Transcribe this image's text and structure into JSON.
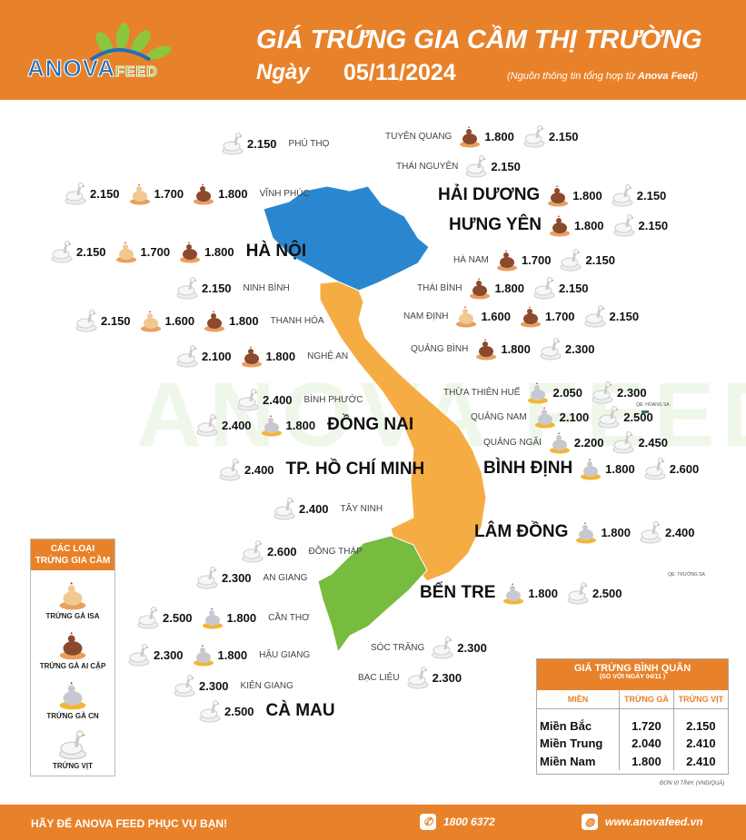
{
  "header": {
    "logo_text": "ANOVA",
    "logo_sub": "FEED",
    "title": "GIÁ TRỨNG GIA CẦM THỊ TRƯỜNG",
    "date_label": "Ngày",
    "date": "05/11/2024",
    "source_prefix": "(Nguồn thông tin tổng hợp từ ",
    "source_brand": "Anova Feed",
    "source_suffix": ")"
  },
  "watermark": "ANOVA FEED",
  "colors": {
    "brand_orange": "#e8822a",
    "north": "#2a87cf",
    "central": "#f5ad43",
    "south": "#77bb3f"
  },
  "icon_types": {
    "isa": "hen-isa-icon",
    "aicap": "hen-ai-cap-icon",
    "cn": "hen-cn-icon",
    "vit": "duck-icon"
  },
  "provinces": [
    {
      "name": "PHÚ THỌ",
      "big": false,
      "side": "left",
      "prices": [
        {
          "type": "vit",
          "value": "2.150"
        }
      ]
    },
    {
      "name": "VĨNH PHÚC",
      "big": false,
      "side": "left",
      "prices": [
        {
          "type": "vit",
          "value": "2.150"
        },
        {
          "type": "isa",
          "value": "1.700"
        },
        {
          "type": "aicap",
          "value": "1.800"
        }
      ]
    },
    {
      "name": "HÀ NỘI",
      "big": true,
      "side": "left",
      "prices": [
        {
          "type": "vit",
          "value": "2.150"
        },
        {
          "type": "isa",
          "value": "1.700"
        },
        {
          "type": "aicap",
          "value": "1.800"
        }
      ]
    },
    {
      "name": "NINH BÌNH",
      "big": false,
      "side": "left",
      "prices": [
        {
          "type": "vit",
          "value": "2.150"
        }
      ]
    },
    {
      "name": "THANH HÓA",
      "big": false,
      "side": "left",
      "prices": [
        {
          "type": "vit",
          "value": "2.150"
        },
        {
          "type": "isa",
          "value": "1.600"
        },
        {
          "type": "aicap",
          "value": "1.800"
        }
      ]
    },
    {
      "name": "NGHỆ AN",
      "big": false,
      "side": "left",
      "prices": [
        {
          "type": "vit",
          "value": "2.100"
        },
        {
          "type": "aicap",
          "value": "1.800"
        }
      ]
    },
    {
      "name": "TUYÊN QUANG",
      "big": false,
      "side": "right",
      "prices": [
        {
          "type": "aicap",
          "value": "1.800"
        },
        {
          "type": "vit",
          "value": "2.150"
        }
      ]
    },
    {
      "name": "THÁI NGUYÊN",
      "big": false,
      "side": "right",
      "prices": [
        {
          "type": "vit",
          "value": "2.150"
        }
      ]
    },
    {
      "name": "HẢI DƯƠNG",
      "big": true,
      "side": "right",
      "prices": [
        {
          "type": "aicap",
          "value": "1.800"
        },
        {
          "type": "vit",
          "value": "2.150"
        }
      ]
    },
    {
      "name": "HƯNG YÊN",
      "big": true,
      "side": "right",
      "prices": [
        {
          "type": "aicap",
          "value": "1.800"
        },
        {
          "type": "vit",
          "value": "2.150"
        }
      ]
    },
    {
      "name": "HÀ NAM",
      "big": false,
      "side": "right",
      "prices": [
        {
          "type": "aicap",
          "value": "1.700"
        },
        {
          "type": "vit",
          "value": "2.150"
        }
      ]
    },
    {
      "name": "THÁI BÌNH",
      "big": false,
      "side": "right",
      "prices": [
        {
          "type": "aicap",
          "value": "1.800"
        },
        {
          "type": "vit",
          "value": "2.150"
        }
      ]
    },
    {
      "name": "NAM ĐỊNH",
      "big": false,
      "side": "right",
      "prices": [
        {
          "type": "isa",
          "value": "1.600"
        },
        {
          "type": "aicap",
          "value": "1.700"
        },
        {
          "type": "vit",
          "value": "2.150"
        }
      ]
    },
    {
      "name": "QUẢNG BÌNH",
      "big": false,
      "side": "right",
      "prices": [
        {
          "type": "aicap",
          "value": "1.800"
        },
        {
          "type": "vit",
          "value": "2.300"
        }
      ]
    },
    {
      "name": "THỪA THIÊN HUẾ",
      "big": false,
      "side": "right",
      "prices": [
        {
          "type": "cn",
          "value": "2.050"
        },
        {
          "type": "vit",
          "value": "2.300"
        }
      ]
    },
    {
      "name": "QUẢNG NAM",
      "big": false,
      "side": "right",
      "prices": [
        {
          "type": "cn",
          "value": "2.100"
        },
        {
          "type": "vit",
          "value": "2.500"
        }
      ]
    },
    {
      "name": "QUẢNG NGÃI",
      "big": false,
      "side": "right",
      "prices": [
        {
          "type": "cn",
          "value": "2.200"
        },
        {
          "type": "vit",
          "value": "2.450"
        }
      ]
    },
    {
      "name": "BÌNH ĐỊNH",
      "big": true,
      "side": "right",
      "prices": [
        {
          "type": "cn",
          "value": "1.800"
        },
        {
          "type": "vit",
          "value": "2.600"
        }
      ]
    },
    {
      "name": "LÂM ĐỒNG",
      "big": true,
      "side": "right",
      "prices": [
        {
          "type": "cn",
          "value": "1.800"
        },
        {
          "type": "vit",
          "value": "2.400"
        }
      ]
    },
    {
      "name": "BẾN TRE",
      "big": true,
      "side": "right",
      "prices": [
        {
          "type": "cn",
          "value": "1.800"
        },
        {
          "type": "vit",
          "value": "2.500"
        }
      ]
    },
    {
      "name": "SÓC TRĂNG",
      "big": false,
      "side": "right",
      "prices": [
        {
          "type": "vit",
          "value": "2.300"
        }
      ]
    },
    {
      "name": "BẠC LIÊU",
      "big": false,
      "side": "right",
      "prices": [
        {
          "type": "vit",
          "value": "2.300"
        }
      ]
    },
    {
      "name": "BÌNH PHƯỚC",
      "big": false,
      "side": "left",
      "prices": [
        {
          "type": "vit",
          "value": "2.400"
        }
      ]
    },
    {
      "name": "ĐỒNG NAI",
      "big": true,
      "side": "left",
      "prices": [
        {
          "type": "vit",
          "value": "2.400"
        },
        {
          "type": "cn",
          "value": "1.800"
        }
      ]
    },
    {
      "name": "TP. HỒ CHÍ MINH",
      "big": true,
      "side": "left",
      "prices": [
        {
          "type": "vit",
          "value": "2.400"
        }
      ]
    },
    {
      "name": "TÂY NINH",
      "big": false,
      "side": "left",
      "prices": [
        {
          "type": "vit",
          "value": "2.400"
        }
      ]
    },
    {
      "name": "ĐỒNG THÁP",
      "big": false,
      "side": "left",
      "prices": [
        {
          "type": "vit",
          "value": "2.600"
        }
      ]
    },
    {
      "name": "AN GIANG",
      "big": false,
      "side": "left",
      "prices": [
        {
          "type": "vit",
          "value": "2.300"
        }
      ]
    },
    {
      "name": "CẦN THƠ",
      "big": false,
      "side": "left",
      "prices": [
        {
          "type": "vit",
          "value": "2.500"
        },
        {
          "type": "cn",
          "value": "1.800"
        }
      ]
    },
    {
      "name": "HẬU GIANG",
      "big": false,
      "side": "left",
      "prices": [
        {
          "type": "vit",
          "value": "2.300"
        },
        {
          "type": "cn",
          "value": "1.800"
        }
      ]
    },
    {
      "name": "KIÊN GIANG",
      "big": false,
      "side": "left",
      "prices": [
        {
          "type": "vit",
          "value": "2.300"
        }
      ]
    },
    {
      "name": "CÀ MAU",
      "big": true,
      "side": "left",
      "prices": [
        {
          "type": "vit",
          "value": "2.500"
        }
      ]
    }
  ],
  "islands": {
    "hoang_sa": "QĐ. HOÀNG SA",
    "truong_sa": "QĐ. TRƯỜNG SA"
  },
  "legend": {
    "title_line1": "CÁC LOẠI",
    "title_line2": "TRỨNG GIA CẦM",
    "items": [
      {
        "type": "isa",
        "label": "TRỨNG GÀ ISA"
      },
      {
        "type": "aicap",
        "label": "TRỨNG GÀ AI CẬP"
      },
      {
        "type": "cn",
        "label": "TRỨNG GÀ CN"
      },
      {
        "type": "vit",
        "label": "TRỨNG VỊT"
      }
    ]
  },
  "average": {
    "title": "GIÁ TRỨNG BÌNH QUÂN",
    "subtitle": "(SO VỚI NGÀY  04/11 )",
    "columns": [
      "MIỀN",
      "TRỨNG GÀ",
      "TRỨNG VỊT"
    ],
    "rows": [
      [
        "Miền Bắc",
        "1.720",
        "2.150"
      ],
      [
        "Miền Trung",
        "2.040",
        "2.410"
      ],
      [
        "Miền Nam",
        "1.800",
        "2.410"
      ]
    ],
    "unit": "ĐƠN VỊ TÍNH: (VND/QUẢ)"
  },
  "footer": {
    "slogan": "HÃY ĐỂ ANOVA FEED PHỤC VỤ BẠN!",
    "phone": "1800 6372",
    "website": "www.anovafeed.vn"
  }
}
